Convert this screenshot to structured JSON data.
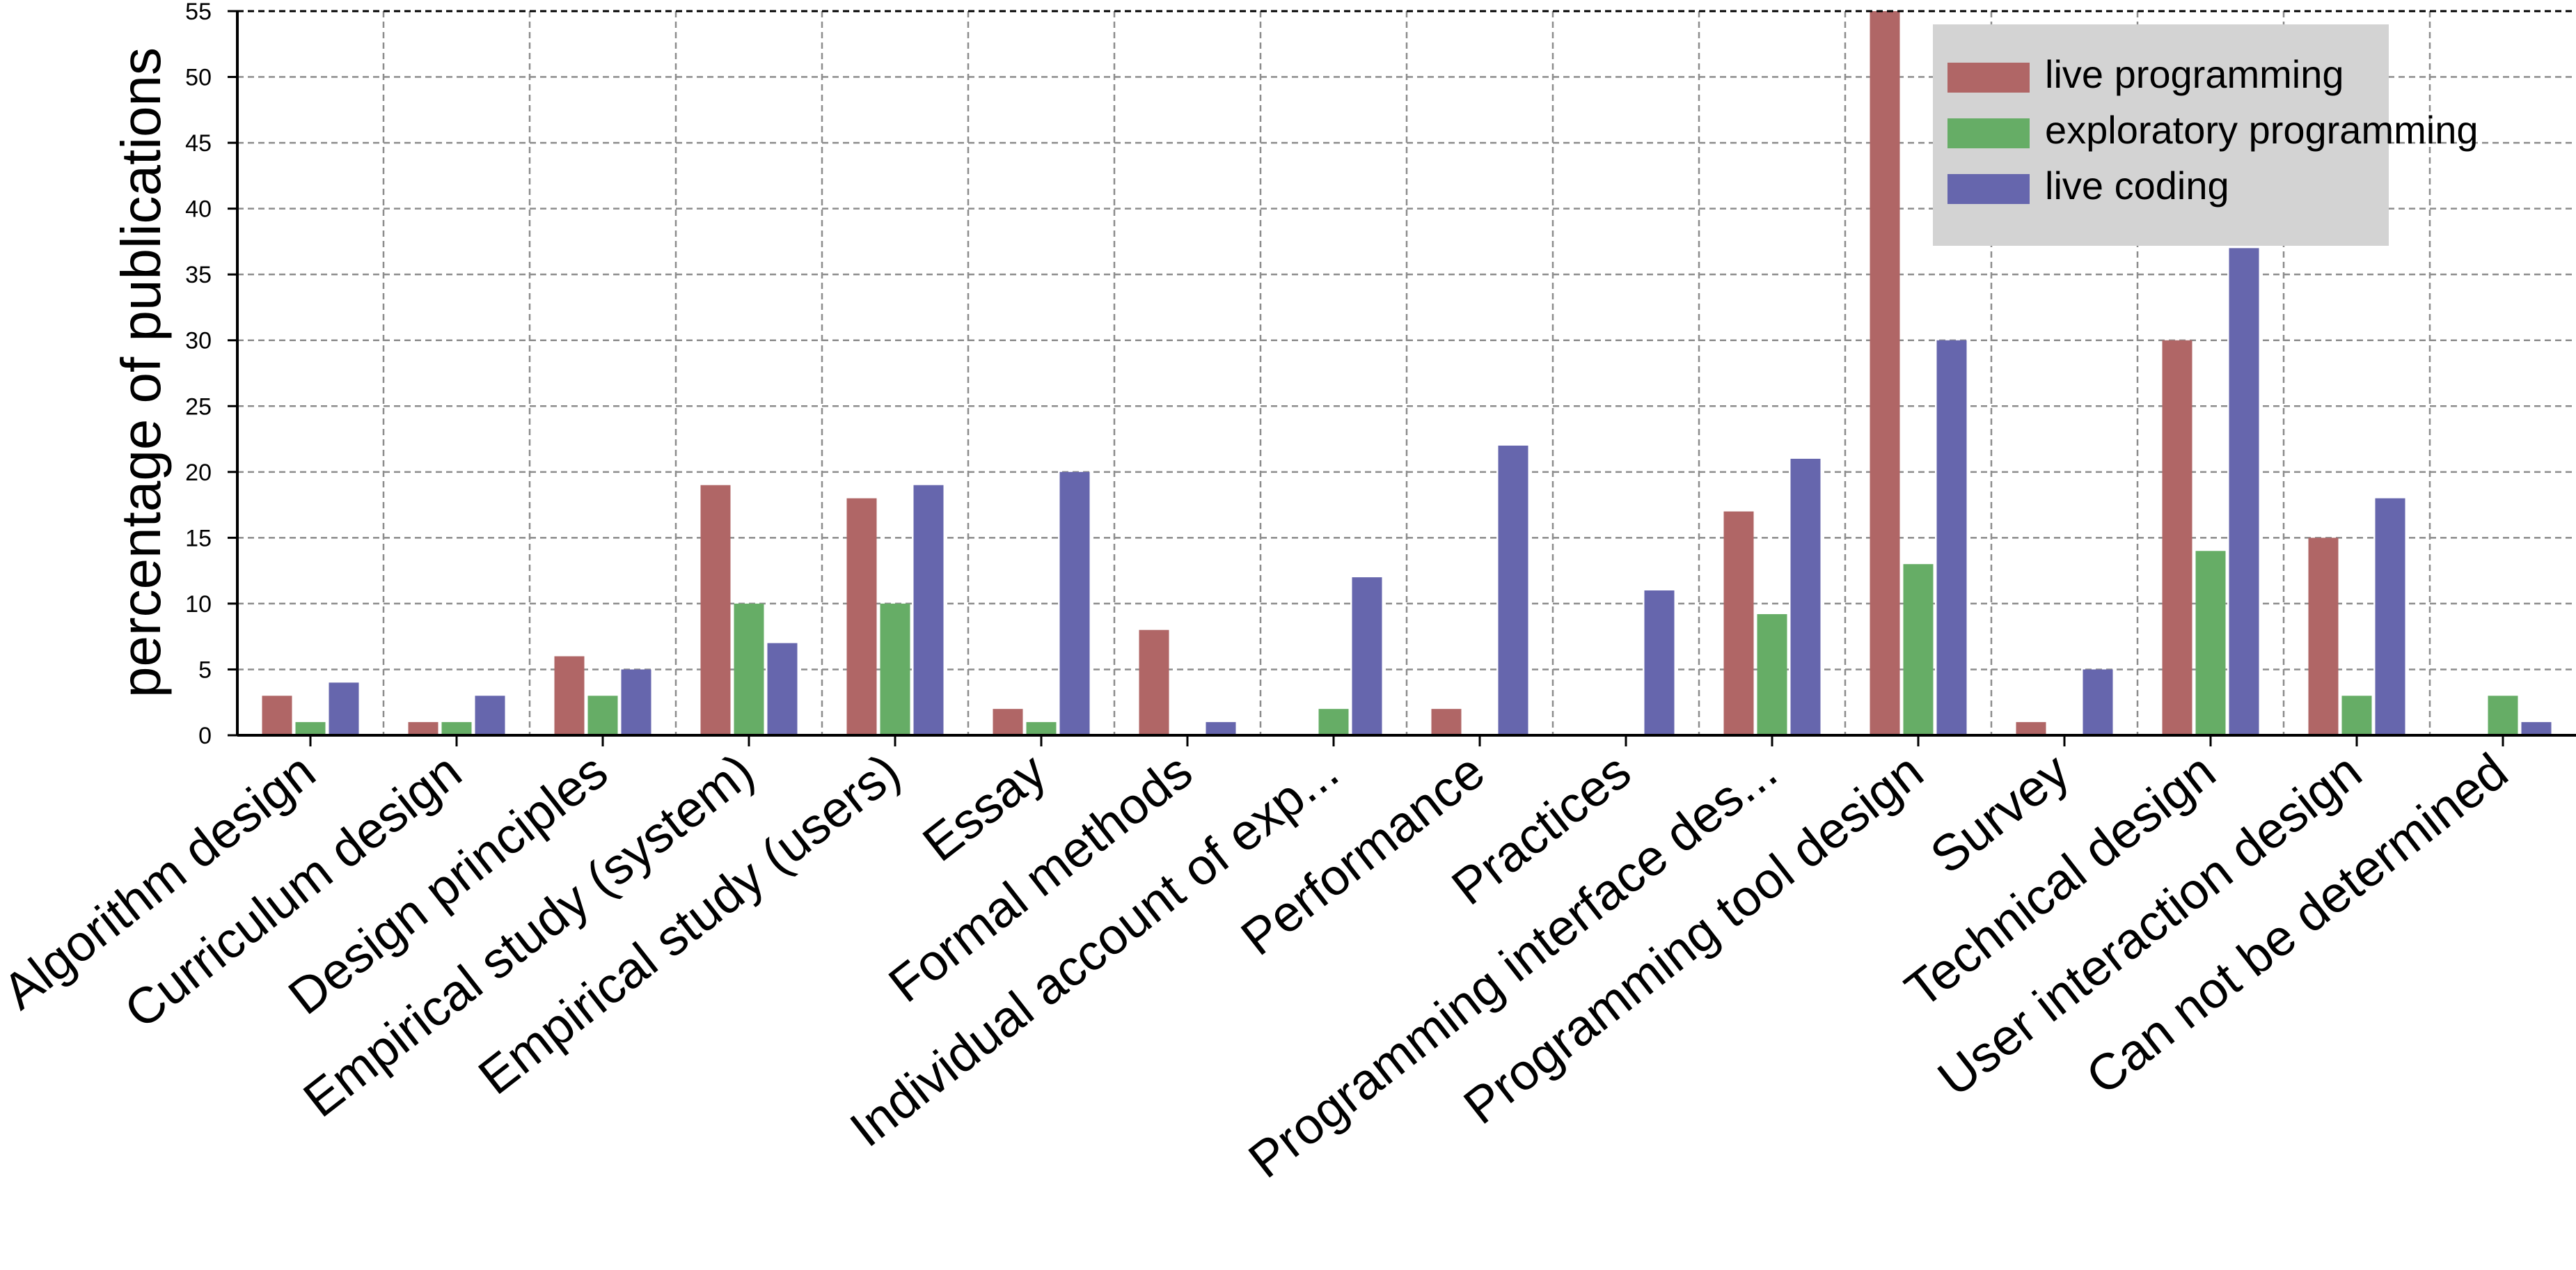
{
  "chart_data": {
    "type": "bar",
    "title": "",
    "xlabel": "",
    "ylabel": "percentage of publications",
    "ylim": [
      0,
      55
    ],
    "yticks": [
      0,
      5,
      10,
      15,
      20,
      25,
      30,
      35,
      40,
      45,
      50,
      55
    ],
    "grid": true,
    "legend_position": "top-right",
    "categories": [
      "Algorithm design",
      "Curriculum design",
      "Design principles",
      "Empirical study (system)",
      "Empirical study (users)",
      "Essay",
      "Formal methods",
      "Individual account of exp...",
      "Performance",
      "Practices",
      "Programming interface des...",
      "Programming tool design",
      "Survey",
      "Technical design",
      "User interaction design",
      "Can not be determined"
    ],
    "series": [
      {
        "name": "live programming",
        "color": "#b06666",
        "values": [
          3,
          1,
          6,
          19,
          18,
          2,
          8,
          0,
          2,
          0,
          17,
          55,
          1,
          30,
          15,
          0
        ]
      },
      {
        "name": "exploratory programming",
        "color": "#66ad66",
        "values": [
          1,
          1,
          3,
          10,
          10,
          1,
          0,
          2,
          0,
          0,
          9.2,
          13,
          0,
          14,
          3,
          3
        ]
      },
      {
        "name": "live coding",
        "color": "#6666ad",
        "values": [
          4,
          3,
          5,
          7,
          19,
          20,
          1,
          12,
          22,
          11,
          21,
          30,
          5,
          37,
          18,
          1
        ]
      }
    ]
  }
}
